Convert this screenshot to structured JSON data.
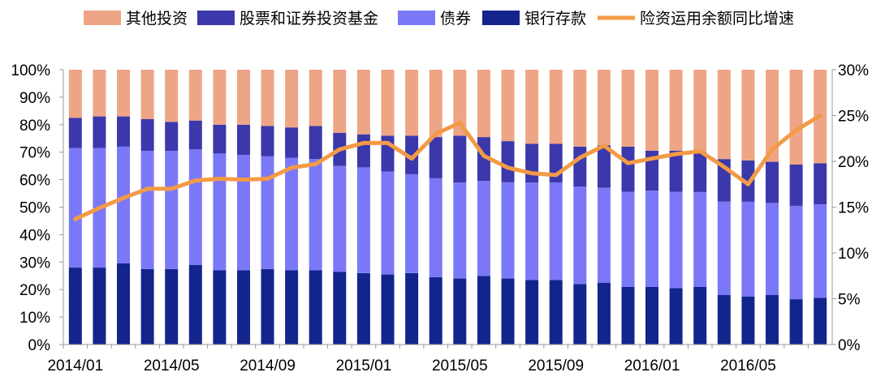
{
  "chart_data": {
    "type": "bar",
    "stacked": true,
    "percent_stacked": true,
    "categories": [
      "2014/01",
      "2014/02",
      "2014/03",
      "2014/04",
      "2014/05",
      "2014/06",
      "2014/07",
      "2014/08",
      "2014/09",
      "2014/10",
      "2014/11",
      "2014/12",
      "2015/01",
      "2015/02",
      "2015/03",
      "2015/04",
      "2015/05",
      "2015/06",
      "2015/07",
      "2015/08",
      "2015/09",
      "2015/10",
      "2015/11",
      "2015/12",
      "2016/01",
      "2016/02",
      "2016/03",
      "2016/04",
      "2016/05",
      "2016/06",
      "2016/07",
      "2016/08"
    ],
    "x_tick_labels": [
      "2014/01",
      "2014/05",
      "2014/09",
      "2015/01",
      "2015/05",
      "2015/09",
      "2016/01",
      "2016/05"
    ],
    "series": [
      {
        "name": "银行存款",
        "color": "#13258c",
        "values": [
          28,
          28,
          29.5,
          27.5,
          27.5,
          29,
          27,
          27,
          27.5,
          27,
          27,
          26.5,
          26,
          25.5,
          26,
          24.5,
          24,
          25,
          24,
          23.5,
          23.5,
          22,
          22.5,
          21,
          21,
          20.5,
          21,
          18,
          17.5,
          18,
          16.5,
          17
        ]
      },
      {
        "name": "债券",
        "color": "#7b78f7",
        "values": [
          43.5,
          43.5,
          42.5,
          43,
          43,
          42,
          42.5,
          42,
          41,
          41,
          40.5,
          38.5,
          38.5,
          37.5,
          36,
          36,
          35,
          34.5,
          35,
          35.5,
          35.5,
          35.5,
          34.5,
          34.5,
          35,
          35,
          34.5,
          34,
          34.5,
          33.5,
          34,
          34
        ]
      },
      {
        "name": "股票和证券投资基金",
        "color": "#3b38ab",
        "values": [
          11,
          11.5,
          11,
          11.5,
          10.5,
          10.5,
          10.5,
          11,
          11,
          11,
          12,
          12,
          12,
          13,
          14,
          15,
          17,
          16,
          15,
          14,
          14,
          14.5,
          15.5,
          16.5,
          14.5,
          15,
          14.5,
          15.5,
          15,
          15,
          15,
          15
        ]
      },
      {
        "name": "其他投资",
        "color": "#eea586",
        "values": [
          17.5,
          17,
          17,
          18,
          19,
          18.5,
          20,
          20,
          20.5,
          21,
          20.5,
          23,
          23.5,
          24,
          24,
          24.5,
          24,
          24.5,
          26,
          27,
          27,
          28,
          27.5,
          28,
          29.5,
          29.5,
          30,
          32.5,
          33,
          33.5,
          34.5,
          34
        ]
      }
    ],
    "line": {
      "name": "险资运用余额同比增速",
      "color": "#f39a46",
      "values": [
        13.7,
        14.9,
        16.0,
        17.0,
        17.0,
        17.9,
        18.1,
        18.0,
        18.1,
        19.3,
        19.7,
        21.3,
        22.0,
        22.0,
        20.3,
        23.0,
        24.2,
        20.6,
        19.3,
        18.7,
        18.5,
        20.4,
        21.7,
        19.8,
        20.3,
        20.8,
        21.1,
        19.4,
        17.5,
        21.3,
        23.4,
        25.0
      ]
    },
    "y_left": {
      "min": 0,
      "max": 100,
      "ticks": [
        "0%",
        "10%",
        "20%",
        "30%",
        "40%",
        "50%",
        "60%",
        "70%",
        "80%",
        "90%",
        "100%"
      ]
    },
    "y_right": {
      "min": 0,
      "max": 30,
      "ticks": [
        "0%",
        "5%",
        "10%",
        "15%",
        "20%",
        "25%",
        "30%"
      ]
    },
    "legend": [
      "其他投资",
      "股票和证券投资基金",
      "债券",
      "银行存款",
      "险资运用余额同比增速"
    ],
    "legend_position": "top",
    "grid": false
  }
}
